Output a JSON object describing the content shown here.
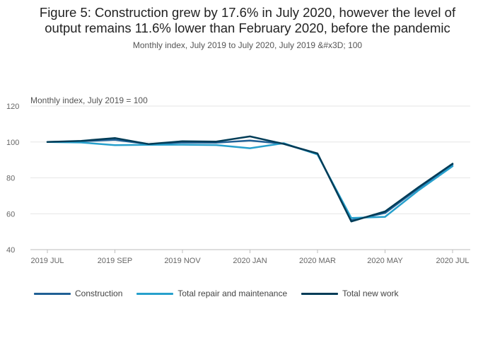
{
  "header": {
    "title_line1": "Figure 5: Construction grew by 17.6% in July 2020, however the level of",
    "title_line2": "output remains 11.6% lower than February 2020, before the pandemic",
    "subtitle": "Monthly index, July 2019 to July 2020, July 2019 &#x3D; 100"
  },
  "colors": {
    "construction": "#206095",
    "repair": "#27a0cc",
    "new_work": "#003c57",
    "grid": "#e6e6e6",
    "axis": "#bdbdbd"
  },
  "chart_data": {
    "type": "line",
    "title": "Figure 5: Construction grew by 17.6% in July 2020, however the level of output remains 11.6% lower than February 2020, before the pandemic",
    "subtitle": "Monthly index, July 2019 to July 2020, July 2019 &#x3D; 100",
    "ylabel": "Monthly index, July 2019 = 100",
    "xlabel": "",
    "ylim": [
      40,
      120
    ],
    "yticks": [
      40,
      60,
      80,
      100,
      120
    ],
    "grid": true,
    "legend_position": "bottom",
    "x": [
      "2019 JUL",
      "2019 AUG",
      "2019 SEP",
      "2019 OCT",
      "2019 NOV",
      "2019 DEC",
      "2020 JAN",
      "2020 FEB",
      "2020 MAR",
      "2020 APR",
      "2020 MAY",
      "2020 JUN",
      "2020 JUL"
    ],
    "xtick_labels": [
      "2019 JUL",
      "",
      "2019 SEP",
      "",
      "2019 NOV",
      "",
      "2020 JAN",
      "",
      "2020 MAR",
      "",
      "2020 MAY",
      "",
      "2020 JUL"
    ],
    "series": [
      {
        "name": "Construction",
        "color_key": "construction",
        "values": [
          100,
          100.4,
          101.2,
          98.8,
          99.7,
          99.6,
          100.8,
          99,
          93.3,
          56.4,
          60.4,
          74.3,
          87.4
        ]
      },
      {
        "name": "Total repair and maintenance",
        "color_key": "repair",
        "values": [
          100,
          99.7,
          98.2,
          98.4,
          98.5,
          98.3,
          96.5,
          99.3,
          93,
          57.6,
          58.3,
          73.2,
          86.5
        ]
      },
      {
        "name": "Total new work",
        "color_key": "new_work",
        "values": [
          100,
          100.6,
          102.2,
          98.8,
          100.4,
          100.2,
          103.1,
          98.9,
          93.6,
          55.7,
          61.3,
          74.9,
          87.9
        ]
      }
    ]
  }
}
